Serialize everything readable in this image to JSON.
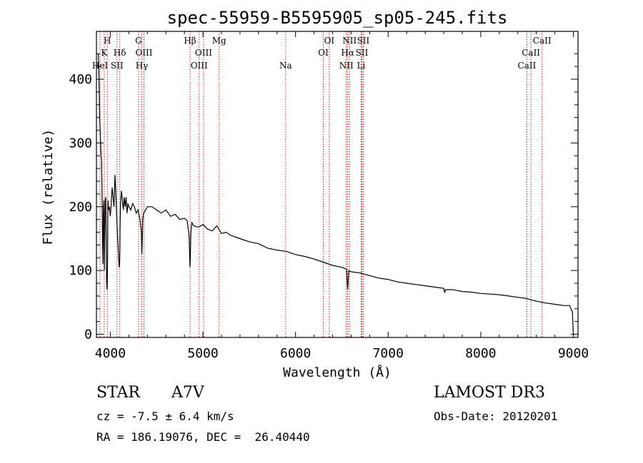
{
  "chart_data": {
    "type": "line",
    "title": "spec-55959-B5595905_sp05-245.fits",
    "xlabel": "Wavelength (Å)",
    "ylabel": "Flux (relative)",
    "xlim": [
      3850,
      9050
    ],
    "ylim": [
      -5,
      475
    ],
    "xticks": [
      4000,
      5000,
      6000,
      7000,
      8000,
      9000
    ],
    "yticks": [
      0,
      100,
      200,
      300,
      400
    ],
    "series": [
      {
        "name": "spectrum",
        "x": [
          3870,
          3875,
          3880,
          3885,
          3890,
          3895,
          3900,
          3905,
          3910,
          3915,
          3920,
          3925,
          3930,
          3933,
          3936,
          3940,
          3945,
          3950,
          3955,
          3960,
          3965,
          3968,
          3970,
          3972,
          3975,
          3980,
          3990,
          4000,
          4010,
          4020,
          4030,
          4040,
          4050,
          4060,
          4070,
          4080,
          4090,
          4095,
          4100,
          4102,
          4105,
          4110,
          4120,
          4130,
          4140,
          4150,
          4160,
          4170,
          4180,
          4190,
          4200,
          4220,
          4240,
          4260,
          4280,
          4300,
          4320,
          4335,
          4340,
          4345,
          4350,
          4360,
          4380,
          4400,
          4450,
          4500,
          4550,
          4600,
          4650,
          4700,
          4750,
          4800,
          4830,
          4850,
          4855,
          4861,
          4866,
          4870,
          4880,
          4900,
          4950,
          5000,
          5050,
          5100,
          5150,
          5200,
          5250,
          5300,
          5400,
          5500,
          5600,
          5700,
          5800,
          5900,
          6000,
          6100,
          6200,
          6300,
          6400,
          6500,
          6550,
          6563,
          6575,
          6600,
          6700,
          6800,
          6900,
          7000,
          7100,
          7200,
          7300,
          7400,
          7500,
          7600,
          7610,
          7620,
          7700,
          7800,
          7900,
          8000,
          8100,
          8200,
          8300,
          8400,
          8498,
          8542,
          8600,
          8662,
          8700,
          8800,
          8900,
          8960,
          8990,
          9000
        ],
        "values": [
          440,
          420,
          380,
          340,
          320,
          300,
          280,
          275,
          230,
          160,
          110,
          190,
          210,
          140,
          100,
          170,
          210,
          215,
          150,
          80,
          70,
          90,
          120,
          180,
          210,
          195,
          200,
          185,
          205,
          230,
          215,
          200,
          250,
          220,
          180,
          150,
          120,
          105,
          110,
          130,
          170,
          205,
          225,
          210,
          195,
          215,
          200,
          215,
          190,
          205,
          200,
          195,
          205,
          200,
          190,
          195,
          180,
          160,
          125,
          150,
          180,
          190,
          195,
          200,
          200,
          195,
          190,
          195,
          185,
          188,
          180,
          182,
          178,
          155,
          130,
          105,
          135,
          160,
          175,
          170,
          168,
          172,
          165,
          162,
          170,
          158,
          160,
          155,
          150,
          145,
          142,
          135,
          132,
          130,
          125,
          122,
          118,
          113,
          108,
          105,
          102,
          70,
          100,
          98,
          96,
          92,
          88,
          86,
          82,
          80,
          78,
          76,
          74,
          72,
          65,
          70,
          70,
          67,
          66,
          64,
          63,
          62,
          60,
          58,
          56,
          54,
          52,
          50,
          49,
          47,
          45,
          45,
          35,
          0
        ]
      }
    ],
    "lines": [
      {
        "label": "HeI",
        "x": 3889,
        "row": 3
      },
      {
        "label": "K",
        "x": 3934,
        "row": 2
      },
      {
        "label": "H",
        "x": 3968,
        "row": 1
      },
      {
        "label": "SII",
        "x": 4072,
        "row": 3
      },
      {
        "label": "Hδ",
        "x": 4102,
        "row": 2
      },
      {
        "label": "G",
        "x": 4305,
        "row": 1
      },
      {
        "label": "Hγ",
        "x": 4340,
        "row": 3
      },
      {
        "label": "OIII",
        "x": 4363,
        "row": 2
      },
      {
        "label": "Hβ",
        "x": 4861,
        "row": 1
      },
      {
        "label": "OIII",
        "x": 4959,
        "row": 3
      },
      {
        "label": "OIII",
        "x": 5007,
        "row": 2
      },
      {
        "label": "Mg",
        "x": 5175,
        "row": 1
      },
      {
        "label": "Na",
        "x": 5893,
        "row": 3
      },
      {
        "label": "OI",
        "x": 6300,
        "row": 2
      },
      {
        "label": "OI",
        "x": 6364,
        "row": 1
      },
      {
        "label": "NII",
        "x": 6548,
        "row": 3
      },
      {
        "label": "Hα",
        "x": 6563,
        "row": 2
      },
      {
        "label": "NII",
        "x": 6583,
        "row": 1
      },
      {
        "label": "Li",
        "x": 6708,
        "row": 3
      },
      {
        "label": "SII",
        "x": 6716,
        "row": 2
      },
      {
        "label": "SII",
        "x": 6731,
        "row": 1
      },
      {
        "label": "CaII",
        "x": 8498,
        "row": 3
      },
      {
        "label": "CaII",
        "x": 8542,
        "row": 2
      },
      {
        "label": "CaII",
        "x": 8662,
        "row": 1
      }
    ]
  },
  "info": {
    "object_class": "STAR",
    "subclass": "A7V",
    "survey": "LAMOST DR3",
    "cz": "cz = -7.5 ± 6.4 km/s",
    "obs_date": "Obs-Date: 20120201",
    "coords": "RA = 186.19076, DEC =  26.40440"
  },
  "colors": {
    "axis": "#000000",
    "spectrum": "#000000",
    "line_marker": "#cc2222"
  }
}
